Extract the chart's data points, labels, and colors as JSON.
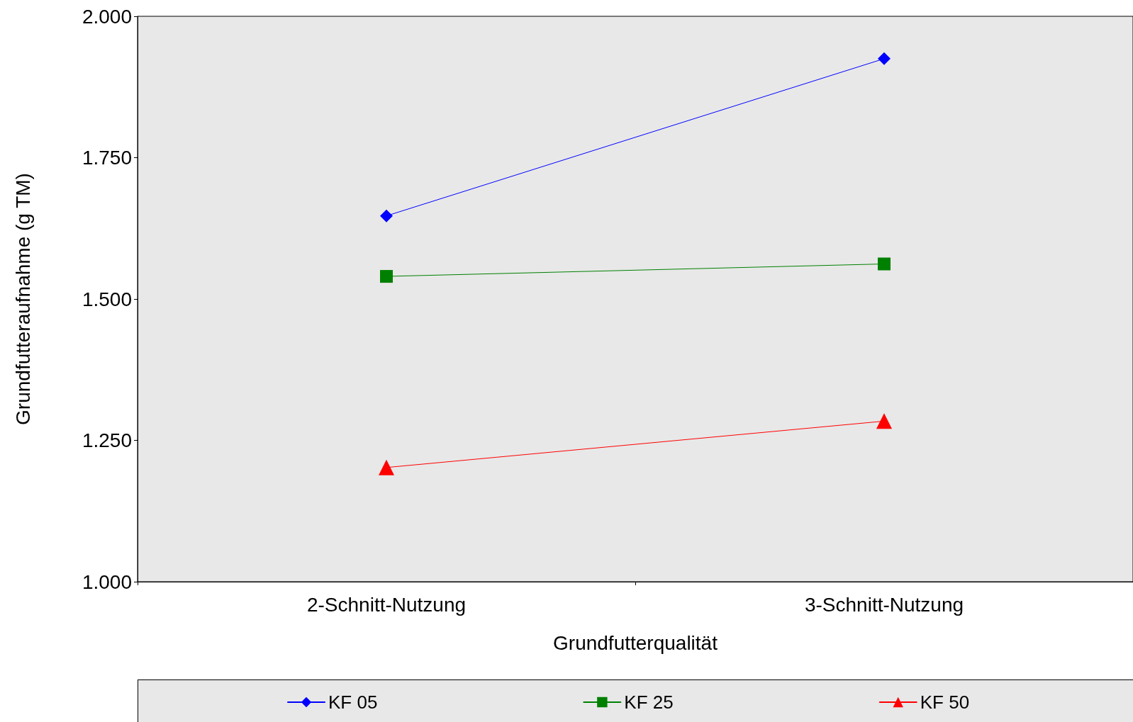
{
  "chart_data": {
    "type": "line",
    "xlabel": "Grundfutterqualität",
    "ylabel": "Grundfutteraufnahme (g TM)",
    "categories": [
      "2-Schnitt-Nutzung",
      "3-Schnitt-Nutzung"
    ],
    "series": [
      {
        "name": "KF 05",
        "color": "#0000ff",
        "marker": "diamond",
        "values": [
          1647,
          1925
        ]
      },
      {
        "name": "KF 25",
        "color": "#008000",
        "marker": "square",
        "values": [
          1540,
          1562
        ]
      },
      {
        "name": "KF 50",
        "color": "#ff0000",
        "marker": "triangle",
        "values": [
          1202,
          1284
        ]
      }
    ],
    "ylim": [
      1000,
      2000
    ],
    "yticks": [
      {
        "value": 1000,
        "label": "1.000"
      },
      {
        "value": 1250,
        "label": "1.250"
      },
      {
        "value": 1500,
        "label": "1.500"
      },
      {
        "value": 1750,
        "label": "1.750"
      },
      {
        "value": 2000,
        "label": "2.000"
      }
    ],
    "grid": false,
    "legend": "bottom",
    "line_style": "solid"
  }
}
